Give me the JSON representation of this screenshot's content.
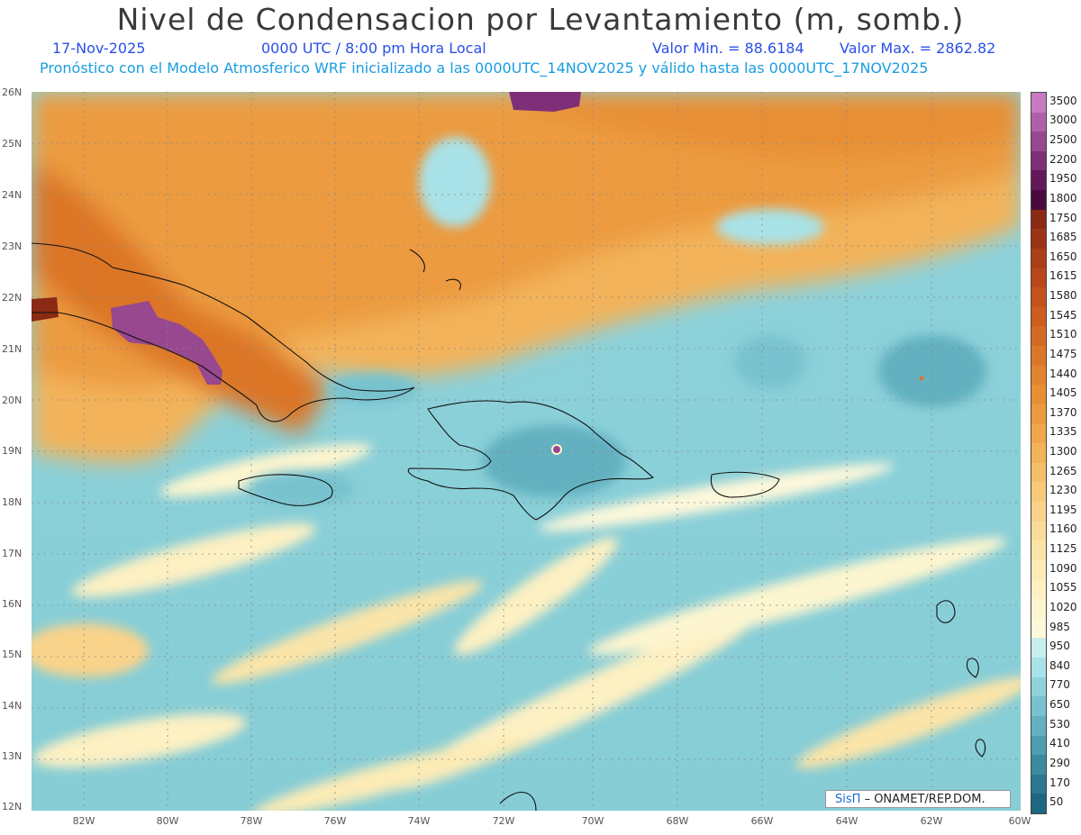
{
  "header": {
    "title": "Nivel de Condensacion por Levantamiento (m, somb.)",
    "date": "17-Nov-2025",
    "time": "0000 UTC / 8:00 pm Hora Local",
    "valmin": "Valor Min. = 88.6184",
    "valmax": "Valor Max. = 2862.82",
    "description": "Pronóstico con el Modelo Atmosferico WRF inicializado a las 0000UTC_14NOV2025 y válido hasta las  0000UTC_17NOV2025"
  },
  "map": {
    "lat_labels": [
      "26N",
      "25N",
      "24N",
      "23N",
      "22N",
      "21N",
      "20N",
      "19N",
      "18N",
      "17N",
      "16N",
      "15N",
      "14N",
      "13N",
      "12N"
    ],
    "lon_labels": [
      "82W",
      "80W",
      "78W",
      "76W",
      "74W",
      "72W",
      "70W",
      "68W",
      "66W",
      "64W",
      "62W",
      "60W"
    ]
  },
  "colorbar": {
    "levels": [
      "3500",
      "3000",
      "2500",
      "2200",
      "1950",
      "1800",
      "1750",
      "1685",
      "1650",
      "1615",
      "1580",
      "1545",
      "1510",
      "1475",
      "1440",
      "1405",
      "1370",
      "1335",
      "1300",
      "1265",
      "1230",
      "1195",
      "1160",
      "1125",
      "1090",
      "1055",
      "1020",
      "985",
      "950",
      "840",
      "770",
      "650",
      "530",
      "410",
      "290",
      "170",
      "50"
    ],
    "colors": [
      "#c77ac2",
      "#b060aa",
      "#98488f",
      "#7e2f77",
      "#63185a",
      "#4a0a40",
      "#8a2a14",
      "#9c3416",
      "#ac3e18",
      "#b8481a",
      "#c4521c",
      "#cc5d1e",
      "#d46a22",
      "#dc7628",
      "#e2832e",
      "#e88f36",
      "#ec9b40",
      "#f0a74c",
      "#f3b35a",
      "#f5be6a",
      "#f7c97a",
      "#f9d38a",
      "#fadc9a",
      "#fbe4a8",
      "#fcebb6",
      "#fdf0c2",
      "#fdf5cf",
      "#fef8da",
      "#c8eef0",
      "#a8e2e8",
      "#8ed2dc",
      "#78c2cf",
      "#62b0c0",
      "#4e9db0",
      "#3c8aa0",
      "#2c7890",
      "#1d6780"
    ]
  },
  "credit": {
    "logo": "SisΠ",
    "text": "– ONAMET/REP.DOM."
  }
}
